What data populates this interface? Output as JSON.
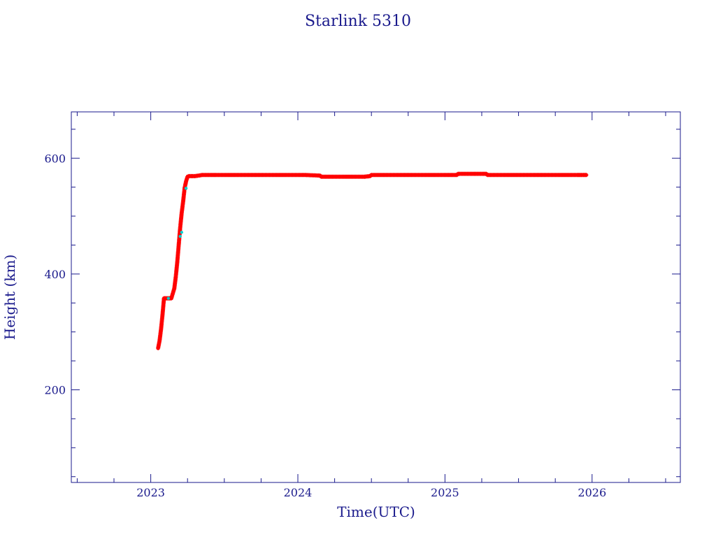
{
  "chart_data": {
    "type": "scatter",
    "title": "Starlink 5310",
    "xlabel": "Time(UTC)",
    "ylabel": "Height (km)",
    "xlim": [
      2022.46,
      2026.6
    ],
    "ylim": [
      40,
      680
    ],
    "x_ticks": [
      2023,
      2024,
      2025,
      2026
    ],
    "x_tick_labels": [
      "2023",
      "2024",
      "2025",
      "2026"
    ],
    "y_ticks": [
      200,
      400,
      600
    ],
    "y_tick_labels": [
      "200",
      "400",
      "600"
    ],
    "grid": false,
    "series": [
      {
        "color": "#ff0000",
        "marker": "star",
        "x": [
          2023.05,
          2023.06,
          2023.07,
          2023.08,
          2023.09,
          2023.1,
          2023.12,
          2023.14,
          2023.16,
          2023.17,
          2023.18,
          2023.19,
          2023.2,
          2023.21,
          2023.22,
          2023.23,
          2023.24,
          2023.25,
          2023.26,
          2023.3,
          2023.35,
          2023.45,
          2023.6,
          2023.75,
          2023.9,
          2024.05,
          2024.15,
          2024.16,
          2024.3,
          2024.45,
          2024.49,
          2024.5,
          2024.65,
          2024.8,
          2024.95,
          2025.08,
          2025.09,
          2025.2,
          2025.28,
          2025.29,
          2025.45,
          2025.6,
          2025.75,
          2025.9,
          2025.96
        ],
        "y": [
          272,
          285,
          305,
          330,
          358,
          358,
          358,
          358,
          375,
          395,
          420,
          450,
          480,
          505,
          525,
          548,
          560,
          568,
          569,
          569,
          571,
          571,
          571,
          571,
          571,
          571,
          570,
          568,
          568,
          568,
          569,
          571,
          571,
          571,
          571,
          571,
          573,
          573,
          573,
          571,
          571,
          571,
          571,
          571,
          571
        ]
      },
      {
        "color": "#00cccc",
        "marker": "dot",
        "x": [
          2023.12,
          2023.2,
          2023.21,
          2023.24
        ],
        "y": [
          358,
          465,
          472,
          548
        ]
      }
    ]
  }
}
